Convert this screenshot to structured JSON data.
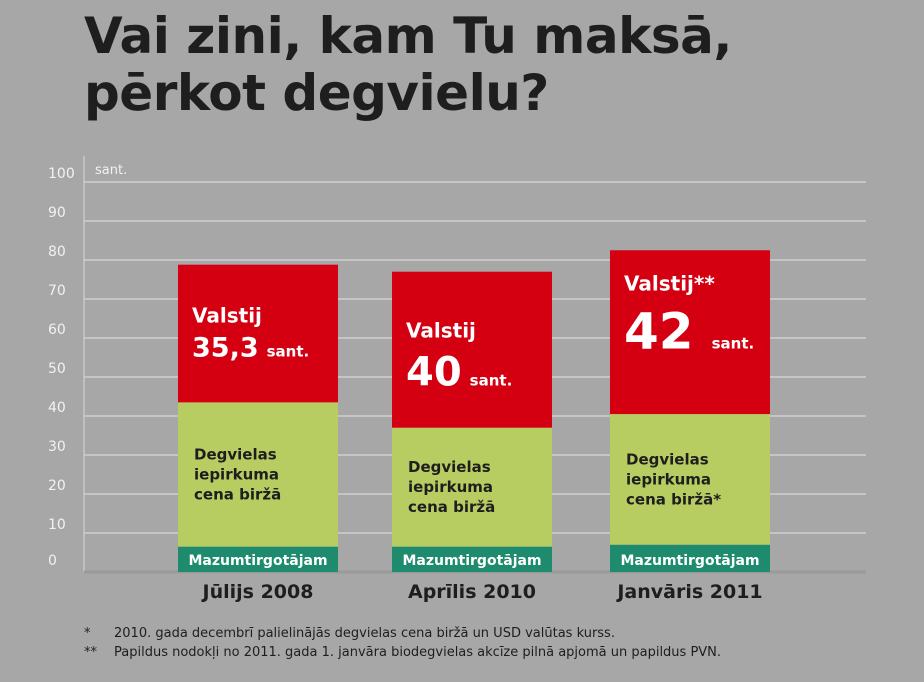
{
  "title": {
    "line1": "Vai zini, kam Tu maksā,",
    "line2": "pērkot degvielu?"
  },
  "chart_data": {
    "type": "bar",
    "stacked": true,
    "unit_label": "sant.",
    "ylim": [
      0,
      100
    ],
    "yticks": [
      0,
      10,
      20,
      30,
      40,
      50,
      60,
      70,
      80,
      90,
      100
    ],
    "grid": true,
    "categories": [
      "Jūlijs 2008",
      "Aprīlis 2010",
      "Janvāris 2011"
    ],
    "series": [
      {
        "name": "Mazumtirgotājam",
        "color": "#1e8a6e",
        "values": [
          6.5,
          6.5,
          7
        ]
      },
      {
        "name": "Degvielas iepirkuma cena biržā",
        "color": "#b8cd61",
        "values": [
          37,
          30.5,
          33.5
        ]
      },
      {
        "name": "Valstij",
        "color": "#d40012",
        "values": [
          35.3,
          40,
          42
        ]
      }
    ],
    "bar_labels": {
      "retail": [
        "Mazumtirgotājam",
        "Mazumtirgotājam",
        "Mazumtirgotājam"
      ],
      "purchase": [
        [
          "Degvielas",
          "iepirkuma",
          "cena biržā"
        ],
        [
          "Degvielas",
          "iepirkuma",
          "cena biržā"
        ],
        [
          "Degvielas",
          "iepirkuma",
          "cena biržā*"
        ]
      ],
      "state_heading": [
        "Valstij",
        "Valstij",
        "Valstij**"
      ],
      "state_value": [
        "35,3",
        "40",
        "42"
      ],
      "state_unit": [
        "sant.",
        "sant.",
        "sant."
      ]
    }
  },
  "footnotes": [
    {
      "mark": "*",
      "text": "2010. gada decembrī palielinājās degvielas cena biržā un USD valūtas kurss."
    },
    {
      "mark": "**",
      "text": "Papildus nodokļi no 2011. gada 1. janvāra biodegvielas akcīze pilnā apjomā un papildus PVN."
    }
  ],
  "colors": {
    "background": "#a7a7a7",
    "state": "#d40012",
    "purchase": "#b8cd61",
    "retail": "#1e8a6e",
    "text": "#1e1e1e"
  }
}
